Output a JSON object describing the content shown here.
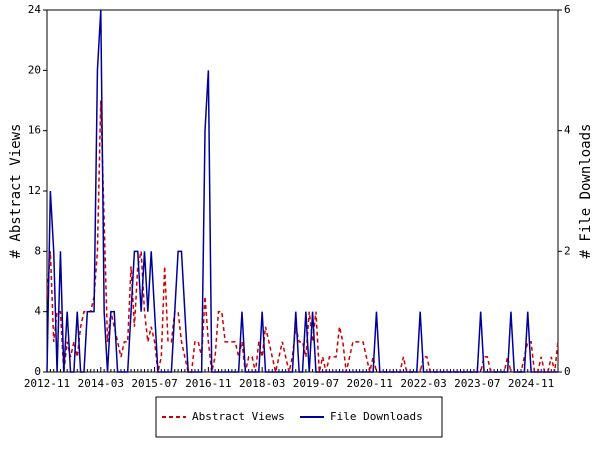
{
  "chart_data": {
    "type": "line",
    "y_label": "# Abstract Views",
    "y2_label": "# File Downloads",
    "categories": [
      "2012-11",
      null,
      null,
      null,
      null,
      null,
      null,
      null,
      null,
      null,
      null,
      null,
      null,
      null,
      null,
      null,
      "2014-03",
      null,
      null,
      null,
      null,
      null,
      null,
      null,
      null,
      null,
      null,
      null,
      null,
      null,
      null,
      null,
      "2015-07",
      null,
      null,
      null,
      null,
      null,
      null,
      null,
      null,
      null,
      null,
      null,
      null,
      null,
      null,
      null,
      "2016-11",
      null,
      null,
      null,
      null,
      null,
      null,
      null,
      null,
      null,
      null,
      null,
      null,
      null,
      null,
      null,
      "2018-03",
      null,
      null,
      null,
      null,
      null,
      null,
      null,
      null,
      null,
      null,
      null,
      null,
      null,
      null,
      null,
      "2019-07",
      null,
      null,
      null,
      null,
      null,
      null,
      null,
      null,
      null,
      null,
      null,
      null,
      null,
      null,
      null,
      "2020-11",
      null,
      null,
      null,
      null,
      null,
      null,
      null,
      null,
      null,
      null,
      null,
      null,
      null,
      null,
      null,
      "2022-03",
      null,
      null,
      null,
      null,
      null,
      null,
      null,
      null,
      null,
      null,
      null,
      null,
      null,
      null,
      null,
      "2023-07",
      null,
      null,
      null,
      null,
      null,
      null,
      null,
      null,
      null,
      null,
      null,
      null,
      null,
      null,
      null,
      "2024-11",
      null,
      null,
      null,
      null,
      null,
      null,
      null,
      null
    ],
    "series": [
      {
        "name": "Abstract Views",
        "color": "#cc0000",
        "dash": true,
        "axis": "y",
        "values": [
          5,
          8,
          2,
          4,
          4,
          0,
          2,
          1,
          2,
          1,
          3,
          4,
          4,
          4,
          5,
          8,
          18,
          10,
          2,
          4,
          3,
          2,
          1,
          2,
          2,
          7,
          3,
          7,
          8,
          4,
          2,
          3,
          2,
          0,
          1,
          7,
          2,
          2,
          4,
          4,
          2,
          1,
          0,
          0,
          2,
          2,
          1,
          5,
          2,
          0,
          1,
          4,
          4,
          2,
          2,
          2,
          2,
          1,
          2,
          0,
          1,
          1,
          0,
          2,
          1,
          3,
          2,
          1,
          0,
          1,
          2,
          1,
          0,
          1,
          3,
          2,
          2,
          1,
          4,
          2,
          4,
          0,
          1,
          0,
          1,
          1,
          1,
          3,
          2,
          0,
          1,
          2,
          2,
          2,
          2,
          1,
          0,
          1,
          0,
          0,
          0,
          0,
          0,
          0,
          0,
          0,
          1,
          0,
          0,
          0,
          0,
          0,
          1,
          1,
          0,
          0,
          0,
          0,
          0,
          0,
          0,
          0,
          0,
          0,
          0,
          0,
          0,
          0,
          0,
          0,
          1,
          1,
          0,
          0,
          0,
          0,
          0,
          1,
          0,
          0,
          0,
          0,
          1,
          2,
          2,
          0,
          0,
          1,
          0,
          0,
          1,
          0,
          2
        ]
      },
      {
        "name": "File Downloads",
        "color": "#000099",
        "dash": false,
        "axis": "y2",
        "values": [
          0,
          3,
          2,
          0,
          2,
          0,
          1,
          0,
          0,
          1,
          0,
          0,
          1,
          1,
          1,
          5,
          6,
          1,
          0,
          1,
          1,
          0,
          0,
          0,
          0,
          1,
          2,
          2,
          1,
          2,
          1,
          2,
          1,
          0,
          0,
          0,
          0,
          0,
          1,
          2,
          2,
          1,
          0,
          0,
          0,
          0,
          0,
          4,
          5,
          0,
          0,
          0,
          0,
          0,
          0,
          0,
          0,
          0,
          1,
          0,
          0,
          0,
          0,
          0,
          1,
          0,
          0,
          0,
          0,
          0,
          0,
          0,
          0,
          0,
          1,
          0,
          0,
          1,
          0,
          1,
          0,
          0,
          0,
          0,
          0,
          0,
          0,
          0,
          0,
          0,
          0,
          0,
          0,
          0,
          0,
          0,
          0,
          0,
          1,
          0,
          0,
          0,
          0,
          0,
          0,
          0,
          0,
          0,
          0,
          0,
          0,
          1,
          0,
          0,
          0,
          0,
          0,
          0,
          0,
          0,
          0,
          0,
          0,
          0,
          0,
          0,
          0,
          0,
          0,
          1,
          0,
          0,
          0,
          0,
          0,
          0,
          0,
          0,
          1,
          0,
          0,
          0,
          0,
          1,
          0,
          0,
          0,
          0,
          0,
          0,
          0,
          0,
          0
        ]
      }
    ],
    "ylim": [
      0,
      24
    ],
    "yticks": [
      0,
      4,
      8,
      12,
      16,
      20,
      24
    ],
    "y2lim": [
      0,
      6
    ],
    "y2ticks": [
      0,
      2,
      4,
      6
    ]
  }
}
